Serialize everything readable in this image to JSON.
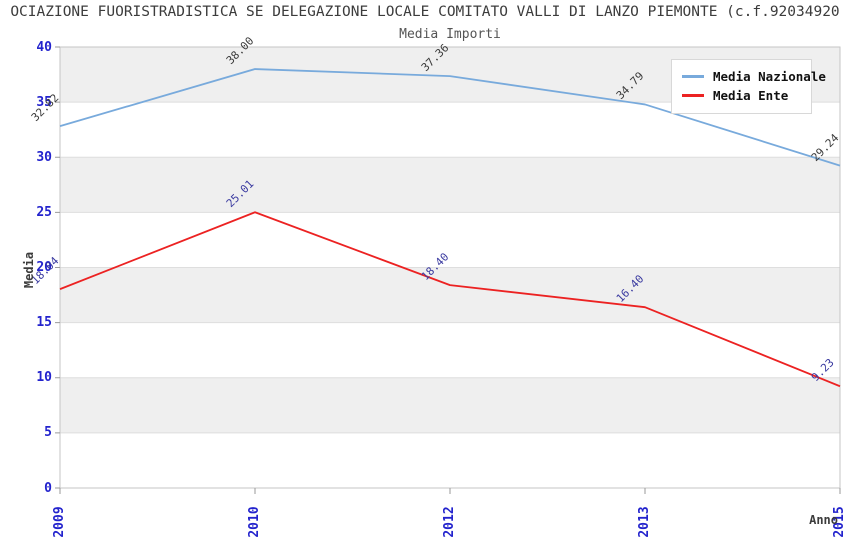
{
  "page": {
    "background": "#ffffff"
  },
  "chart_data": {
    "type": "line",
    "title": "OCIAZIONE FUORISTRADISTICA SE DELEGAZIONE LOCALE COMITATO VALLI DI LANZO PIEMONTE (c.f.92034920",
    "subtitle": "Media Importi",
    "xlabel": "Anno",
    "ylabel": "Media",
    "categories": [
      "2009",
      "2010",
      "2012",
      "2013",
      "2015"
    ],
    "series": [
      {
        "name": "Media Nazionale",
        "color": "#78AADC",
        "label_color": "#3c3c3c",
        "values": [
          32.82,
          38.0,
          37.36,
          34.79,
          29.24
        ]
      },
      {
        "name": "Media Ente",
        "color": "#EC2222",
        "label_color": "#3a3aa0",
        "values": [
          18.04,
          25.01,
          18.4,
          16.4,
          9.23
        ]
      }
    ],
    "ylim": [
      0,
      40
    ],
    "ytick_step": 5,
    "value_label_decimals": 2,
    "legend_position": "top-right",
    "grid": "horizontal-bands",
    "style": {
      "band_color": "#EFEFEF",
      "gridline_color": "#DEDEDE",
      "frame_color": "#C6C6C6",
      "tick_mark_color": "#9a9a9a",
      "tick_label_color": "#2323CD",
      "axis_title_color": "#3c3c3c",
      "title_color": "#3c3c3c",
      "subtitle_color": "#555555",
      "legend_text_color": "#111111",
      "legend_border_color": "#D8D8D8",
      "legend_bg": "#FFFFFF"
    }
  }
}
